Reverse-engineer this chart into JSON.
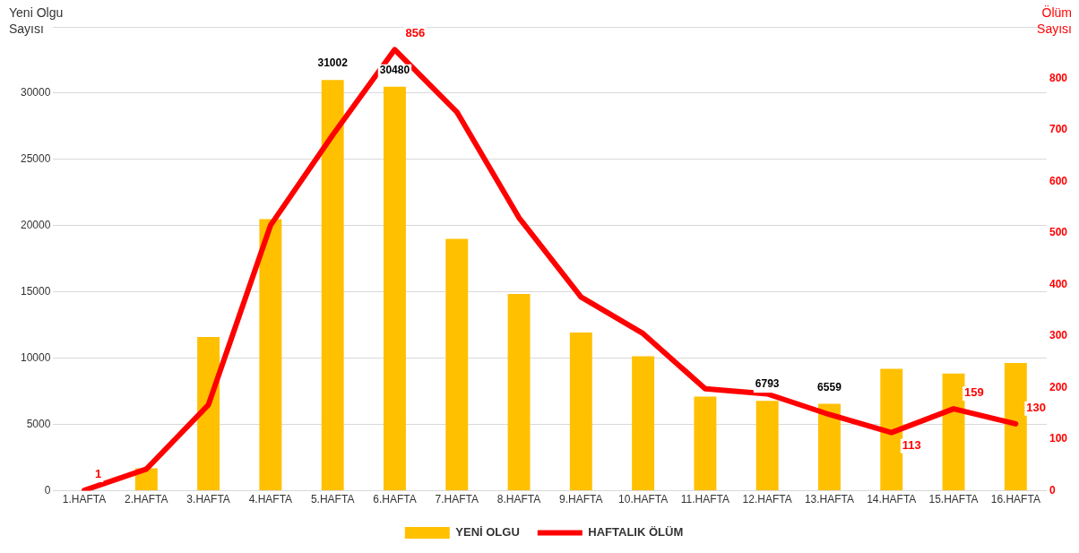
{
  "chart_data": {
    "type": "bar",
    "ylabel": "Yeni Olgu\nSayısı",
    "y2label": "Ölüm\nSayısı",
    "categories": [
      "1.HAFTA",
      "2.HAFTA",
      "3.HAFTA",
      "4.HAFTA",
      "5.HAFTA",
      "6.HAFTA",
      "7.HAFTA",
      "8.HAFTA",
      "9.HAFTA",
      "10.HAFTA",
      "11.HAFTA",
      "12.HAFTA",
      "13.HAFTA",
      "14.HAFTA",
      "15.HAFTA",
      "16.HAFTA"
    ],
    "series": [
      {
        "name": "YENİ OLGU",
        "color": "#ffc000",
        "values": [
          null,
          1700,
          11600,
          20500,
          31002,
          30480,
          19000,
          14850,
          11950,
          10150,
          7100,
          6793,
          6559,
          9200,
          8850,
          9650
        ],
        "value_labels": [
          null,
          null,
          null,
          null,
          "31002",
          "30480",
          null,
          null,
          null,
          null,
          null,
          "6793",
          "6559",
          null,
          null,
          null
        ]
      },
      {
        "name": "HAFTALIK ÖLÜM",
        "type": "line",
        "axis": "y2",
        "color": "#ff0000",
        "values": [
          1,
          42,
          167,
          515,
          690,
          856,
          735,
          530,
          376,
          305,
          198,
          188,
          148,
          113,
          159,
          130
        ],
        "value_labels": [
          "1",
          null,
          null,
          null,
          null,
          "856",
          null,
          null,
          null,
          null,
          null,
          null,
          null,
          "113",
          "159",
          "130"
        ]
      }
    ],
    "ylim": [
      0,
      35000
    ],
    "yticks": [
      0,
      5000,
      10000,
      15000,
      20000,
      25000,
      30000,
      {
        "value": 35000,
        "label": null
      }
    ],
    "y2lim": [
      0,
      900
    ],
    "y2ticks": [
      0,
      100,
      200,
      300,
      400,
      500,
      600,
      700,
      800
    ],
    "grid": "y",
    "legend": "bottom",
    "marker": "none"
  }
}
